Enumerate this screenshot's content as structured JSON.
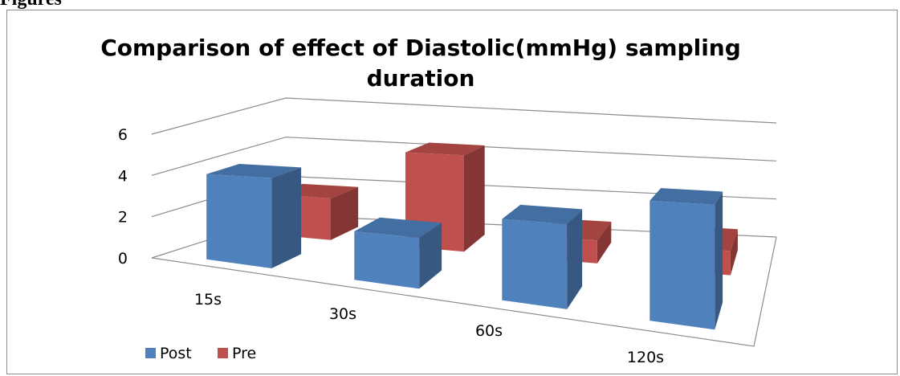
{
  "page": {
    "heading": "Figures"
  },
  "chart_data": {
    "type": "bar",
    "title": "Comparison of effect of Diastolic(mmHg) sampling duration",
    "title_lines": [
      "Comparison of effect of Diastolic(mmHg) sampling",
      "duration"
    ],
    "categories": [
      "15s",
      "30s",
      "60s",
      "120s"
    ],
    "yticks": [
      "0",
      "2",
      "4",
      "6"
    ],
    "ylim": [
      0,
      6
    ],
    "grid": true,
    "legend_position": "bottom-left",
    "series": [
      {
        "name": "Post",
        "values": [
          4,
          2,
          3,
          4
        ],
        "color": "#4f81bd"
      },
      {
        "name": "Pre",
        "values": [
          2,
          4.4,
          1,
          1
        ],
        "color": "#c0504d"
      }
    ]
  }
}
